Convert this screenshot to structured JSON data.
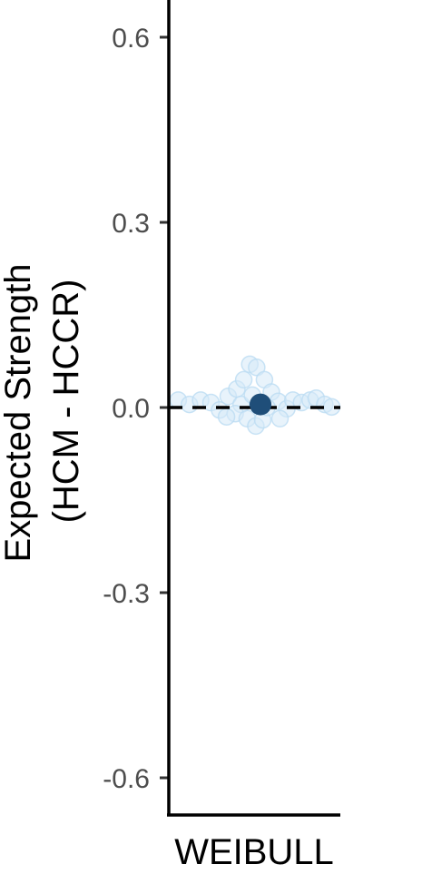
{
  "chart_data": {
    "type": "scatter",
    "ylabel_lines": [
      "Expected Strength",
      "(HCM - HCCR)"
    ],
    "categories": [
      "WEIBULL"
    ],
    "ylim": [
      -0.66,
      0.66
    ],
    "yticks": [
      -0.6,
      -0.3,
      0.0,
      0.3,
      0.6
    ],
    "ytick_labels": [
      "-0.6",
      "-0.3",
      "0.0",
      "0.3",
      "0.6"
    ],
    "reference_line": {
      "y": 0.0,
      "style": "dashed"
    },
    "grid": false,
    "colors": {
      "mean": "#1f4e79",
      "points": "#d6eaf8",
      "points_edge": "#bcdcf2",
      "axis": "#000000"
    },
    "series": [
      {
        "kind": "individual",
        "points": [
          {
            "x": -0.88,
            "y": 0.012
          },
          {
            "x": -0.75,
            "y": 0.005
          },
          {
            "x": -0.62,
            "y": 0.012
          },
          {
            "x": -0.5,
            "y": 0.008
          },
          {
            "x": -0.4,
            "y": -0.004
          },
          {
            "x": -0.3,
            "y": 0.018
          },
          {
            "x": -0.2,
            "y": 0.03
          },
          {
            "x": -0.12,
            "y": 0.045
          },
          {
            "x": -0.05,
            "y": 0.07
          },
          {
            "x": 0.03,
            "y": 0.065
          },
          {
            "x": -0.15,
            "y": 0.005
          },
          {
            "x": -0.22,
            "y": -0.01
          },
          {
            "x": -0.08,
            "y": -0.018
          },
          {
            "x": 0.02,
            "y": -0.03
          },
          {
            "x": 0.12,
            "y": 0.045
          },
          {
            "x": 0.2,
            "y": 0.025
          },
          {
            "x": 0.28,
            "y": 0.01
          },
          {
            "x": 0.38,
            "y": -0.002
          },
          {
            "x": 0.45,
            "y": 0.012
          },
          {
            "x": 0.55,
            "y": 0.008
          },
          {
            "x": 0.65,
            "y": 0.012
          },
          {
            "x": 0.72,
            "y": 0.015
          },
          {
            "x": 0.82,
            "y": 0.005
          },
          {
            "x": 0.9,
            "y": 0.001
          },
          {
            "x": 0.3,
            "y": -0.018
          },
          {
            "x": -0.32,
            "y": -0.015
          },
          {
            "x": 0.1,
            "y": -0.02
          },
          {
            "x": -0.02,
            "y": 0.02
          },
          {
            "x": 0.15,
            "y": 0.0
          }
        ]
      },
      {
        "kind": "mean",
        "points": [
          {
            "x": 0.0,
            "y": 0.005
          }
        ]
      }
    ]
  }
}
